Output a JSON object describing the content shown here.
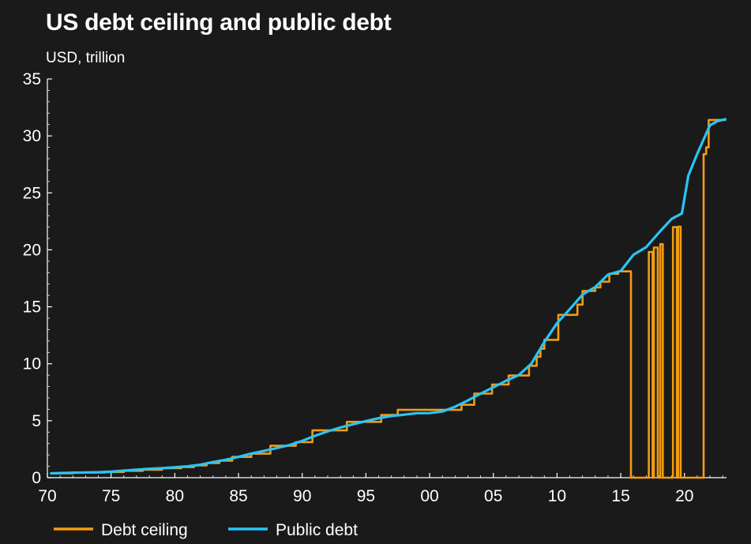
{
  "chart_data": {
    "type": "line",
    "title": "US debt ceiling and public debt",
    "subtitle": "USD, trillion",
    "xlabel": "",
    "ylabel": "",
    "xlim": [
      1970,
      2023.3
    ],
    "ylim": [
      0,
      35
    ],
    "x_tick_values": [
      1970,
      1975,
      1980,
      1985,
      1990,
      1995,
      2000,
      2005,
      2010,
      2015,
      2020
    ],
    "x_tick_labels": [
      "70",
      "75",
      "80",
      "85",
      "90",
      "95",
      "00",
      "05",
      "10",
      "15",
      "20"
    ],
    "y_tick_values": [
      0,
      5,
      10,
      15,
      20,
      25,
      30,
      35
    ],
    "y_tick_labels": [
      "0",
      "5",
      "10",
      "15",
      "20",
      "25",
      "30",
      "35"
    ],
    "grid": false,
    "legend_position": "bottom-left",
    "series": [
      {
        "name": "Debt ceiling",
        "color": "#f39c12",
        "step": true,
        "points": [
          [
            1970.3,
            0.38
          ],
          [
            1972.0,
            0.45
          ],
          [
            1974.5,
            0.5
          ],
          [
            1976.0,
            0.6
          ],
          [
            1977.5,
            0.7
          ],
          [
            1979.0,
            0.83
          ],
          [
            1980.5,
            0.93
          ],
          [
            1981.5,
            1.08
          ],
          [
            1982.5,
            1.29
          ],
          [
            1983.5,
            1.49
          ],
          [
            1984.5,
            1.82
          ],
          [
            1986.0,
            2.11
          ],
          [
            1987.5,
            2.8
          ],
          [
            1989.5,
            3.12
          ],
          [
            1990.8,
            4.15
          ],
          [
            1993.5,
            4.9
          ],
          [
            1996.2,
            5.5
          ],
          [
            1997.5,
            5.95
          ],
          [
            2002.5,
            6.4
          ],
          [
            2003.5,
            7.38
          ],
          [
            2004.9,
            8.18
          ],
          [
            2006.2,
            8.97
          ],
          [
            2007.8,
            9.82
          ],
          [
            2008.4,
            10.62
          ],
          [
            2008.7,
            11.32
          ],
          [
            2009.0,
            12.1
          ],
          [
            2010.1,
            14.29
          ],
          [
            2011.6,
            15.19
          ],
          [
            2012.0,
            16.39
          ],
          [
            2013.0,
            16.7
          ],
          [
            2013.4,
            17.2
          ],
          [
            2014.1,
            17.9
          ],
          [
            2014.8,
            18.11
          ],
          [
            2015.8,
            0
          ],
          [
            2017.2,
            19.81
          ],
          [
            2017.5,
            0
          ],
          [
            2017.6,
            20.2
          ],
          [
            2017.9,
            0
          ],
          [
            2018.1,
            20.5
          ],
          [
            2018.3,
            0
          ],
          [
            2019.1,
            21.99
          ],
          [
            2019.4,
            0
          ],
          [
            2019.5,
            22.03
          ],
          [
            2019.7,
            0
          ],
          [
            2021.5,
            28.4
          ],
          [
            2021.7,
            29.0
          ],
          [
            2021.9,
            31.4
          ],
          [
            2023.2,
            31.4
          ]
        ]
      },
      {
        "name": "Public debt",
        "color": "#29c5f6",
        "step": false,
        "points": [
          [
            1970.3,
            0.38
          ],
          [
            1972.0,
            0.44
          ],
          [
            1974.0,
            0.48
          ],
          [
            1975.0,
            0.53
          ],
          [
            1976.0,
            0.62
          ],
          [
            1977.0,
            0.7
          ],
          [
            1978.0,
            0.78
          ],
          [
            1979.0,
            0.83
          ],
          [
            1980.0,
            0.91
          ],
          [
            1981.0,
            1.0
          ],
          [
            1982.0,
            1.14
          ],
          [
            1983.0,
            1.37
          ],
          [
            1984.0,
            1.57
          ],
          [
            1985.0,
            1.82
          ],
          [
            1986.0,
            2.12
          ],
          [
            1987.0,
            2.35
          ],
          [
            1988.0,
            2.6
          ],
          [
            1989.0,
            2.86
          ],
          [
            1990.0,
            3.23
          ],
          [
            1991.0,
            3.67
          ],
          [
            1992.0,
            4.06
          ],
          [
            1993.0,
            4.41
          ],
          [
            1994.0,
            4.69
          ],
          [
            1995.0,
            4.97
          ],
          [
            1996.0,
            5.22
          ],
          [
            1997.0,
            5.41
          ],
          [
            1998.0,
            5.53
          ],
          [
            1999.0,
            5.66
          ],
          [
            2000.0,
            5.67
          ],
          [
            2001.0,
            5.81
          ],
          [
            2002.0,
            6.23
          ],
          [
            2003.0,
            6.78
          ],
          [
            2004.0,
            7.38
          ],
          [
            2005.0,
            7.93
          ],
          [
            2006.0,
            8.51
          ],
          [
            2007.0,
            9.01
          ],
          [
            2008.0,
            10.03
          ],
          [
            2009.0,
            11.91
          ],
          [
            2010.0,
            13.56
          ],
          [
            2011.0,
            14.79
          ],
          [
            2012.0,
            16.07
          ],
          [
            2013.0,
            16.74
          ],
          [
            2014.0,
            17.82
          ],
          [
            2015.0,
            18.15
          ],
          [
            2016.0,
            19.57
          ],
          [
            2017.0,
            20.24
          ],
          [
            2018.0,
            21.52
          ],
          [
            2019.0,
            22.72
          ],
          [
            2019.8,
            23.2
          ],
          [
            2020.3,
            26.5
          ],
          [
            2021.0,
            28.43
          ],
          [
            2022.0,
            30.93
          ],
          [
            2022.6,
            31.3
          ],
          [
            2023.2,
            31.46
          ]
        ]
      }
    ]
  }
}
